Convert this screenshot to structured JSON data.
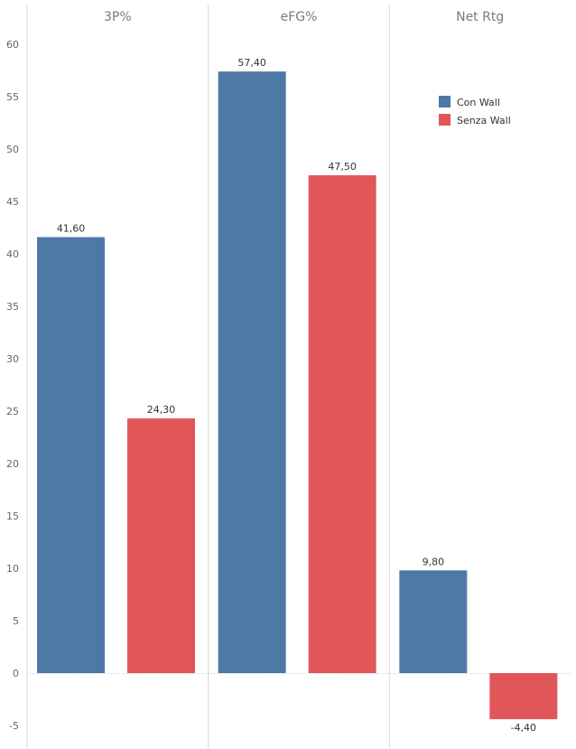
{
  "chart_data": {
    "type": "bar",
    "panels": [
      "3P%",
      "eFG%",
      "Net Rtg"
    ],
    "series": [
      {
        "name": "Con Wall",
        "color": "#4e79a7",
        "values": [
          41.6,
          57.4,
          9.8
        ],
        "labels": [
          "41,60",
          "57,40",
          "9,80"
        ]
      },
      {
        "name": "Senza Wall",
        "color": "#e15759",
        "values": [
          24.3,
          47.5,
          -4.4
        ],
        "labels": [
          "24,30",
          "47,50",
          "-4,40"
        ]
      }
    ],
    "ylim": [
      -6,
      65
    ],
    "yticks": [
      -5,
      0,
      5,
      10,
      15,
      20,
      25,
      30,
      35,
      40,
      45,
      50,
      55,
      60
    ],
    "legend": "top-right",
    "grid": false
  }
}
